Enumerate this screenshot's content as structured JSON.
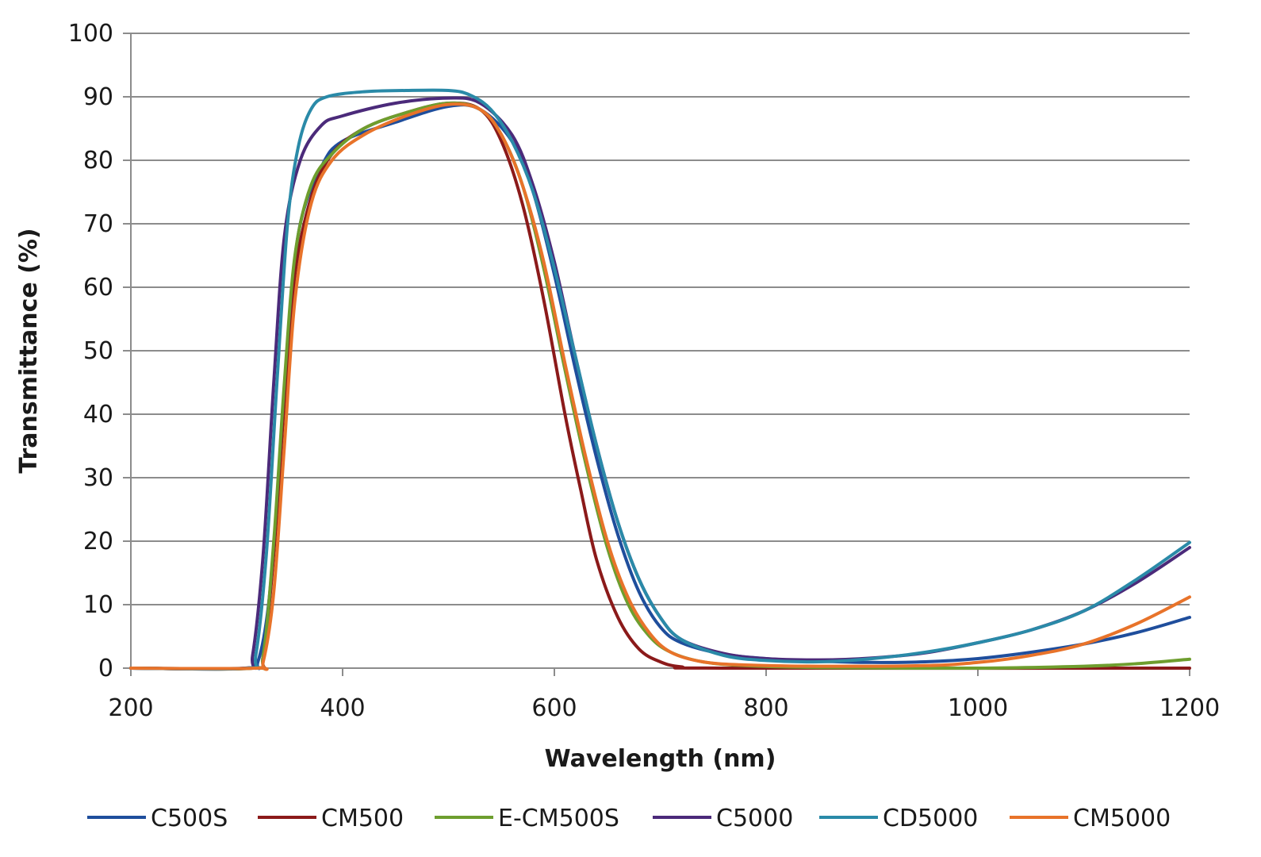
{
  "chart_data": {
    "type": "line",
    "title": "",
    "xlabel": "Wavelength (nm)",
    "ylabel": "Transmittance  (%)",
    "xlim": [
      200,
      1200
    ],
    "ylim": [
      0,
      100
    ],
    "xticks": [
      200,
      400,
      600,
      800,
      1000,
      1200
    ],
    "yticks": [
      0,
      10,
      20,
      30,
      40,
      50,
      60,
      70,
      80,
      90,
      100
    ],
    "grid": "horizontal",
    "legend_position": "bottom",
    "series": [
      {
        "name": "C500S",
        "color": "#1f4e9c",
        "points": [
          [
            200,
            0
          ],
          [
            310,
            0
          ],
          [
            320,
            1
          ],
          [
            330,
            10
          ],
          [
            340,
            30
          ],
          [
            350,
            55
          ],
          [
            360,
            70
          ],
          [
            380,
            79
          ],
          [
            400,
            83
          ],
          [
            450,
            86
          ],
          [
            500,
            88.5
          ],
          [
            530,
            88
          ],
          [
            560,
            83
          ],
          [
            580,
            75
          ],
          [
            600,
            62
          ],
          [
            620,
            47
          ],
          [
            640,
            33
          ],
          [
            660,
            21
          ],
          [
            680,
            12
          ],
          [
            700,
            6.5
          ],
          [
            720,
            4
          ],
          [
            760,
            2.2
          ],
          [
            800,
            1.5
          ],
          [
            850,
            1.1
          ],
          [
            900,
            0.9
          ],
          [
            950,
            1
          ],
          [
            1000,
            1.5
          ],
          [
            1050,
            2.5
          ],
          [
            1100,
            3.8
          ],
          [
            1150,
            5.6
          ],
          [
            1200,
            8
          ]
        ]
      },
      {
        "name": "CM500",
        "color": "#8b1a1a",
        "points": [
          [
            200,
            0
          ],
          [
            315,
            0
          ],
          [
            325,
            2
          ],
          [
            335,
            18
          ],
          [
            345,
            42
          ],
          [
            355,
            62
          ],
          [
            370,
            74
          ],
          [
            390,
            81
          ],
          [
            420,
            85
          ],
          [
            460,
            87.5
          ],
          [
            500,
            89
          ],
          [
            530,
            88
          ],
          [
            550,
            83
          ],
          [
            570,
            73
          ],
          [
            590,
            58
          ],
          [
            610,
            40
          ],
          [
            625,
            28
          ],
          [
            640,
            17
          ],
          [
            660,
            8
          ],
          [
            680,
            3
          ],
          [
            700,
            1
          ],
          [
            720,
            0.2
          ],
          [
            760,
            0
          ],
          [
            1200,
            0
          ]
        ]
      },
      {
        "name": "E-CM500S",
        "color": "#6e9e2e",
        "points": [
          [
            200,
            0
          ],
          [
            315,
            0
          ],
          [
            325,
            2
          ],
          [
            335,
            20
          ],
          [
            345,
            45
          ],
          [
            355,
            65
          ],
          [
            370,
            76
          ],
          [
            390,
            81
          ],
          [
            420,
            85
          ],
          [
            460,
            87.5
          ],
          [
            500,
            89
          ],
          [
            530,
            88
          ],
          [
            550,
            84
          ],
          [
            570,
            76
          ],
          [
            590,
            63
          ],
          [
            610,
            47
          ],
          [
            630,
            32
          ],
          [
            650,
            19
          ],
          [
            670,
            10
          ],
          [
            690,
            5
          ],
          [
            710,
            2.5
          ],
          [
            740,
            1
          ],
          [
            780,
            0.4
          ],
          [
            850,
            0.1
          ],
          [
            1000,
            0
          ],
          [
            1100,
            0.3
          ],
          [
            1150,
            0.7
          ],
          [
            1200,
            1.4
          ]
        ]
      },
      {
        "name": "C5000",
        "color": "#4b2a7a",
        "points": [
          [
            200,
            0
          ],
          [
            308,
            0
          ],
          [
            315,
            2
          ],
          [
            325,
            18
          ],
          [
            335,
            45
          ],
          [
            345,
            68
          ],
          [
            360,
            80
          ],
          [
            380,
            85.5
          ],
          [
            400,
            87
          ],
          [
            450,
            89
          ],
          [
            500,
            89.8
          ],
          [
            530,
            89
          ],
          [
            560,
            84
          ],
          [
            580,
            76
          ],
          [
            600,
            64
          ],
          [
            620,
            49
          ],
          [
            640,
            35
          ],
          [
            660,
            23
          ],
          [
            680,
            14
          ],
          [
            700,
            8
          ],
          [
            720,
            4.5
          ],
          [
            760,
            2.3
          ],
          [
            800,
            1.5
          ],
          [
            850,
            1.3
          ],
          [
            900,
            1.6
          ],
          [
            950,
            2.4
          ],
          [
            1000,
            4
          ],
          [
            1050,
            6
          ],
          [
            1100,
            9
          ],
          [
            1150,
            13.5
          ],
          [
            1200,
            19
          ]
        ]
      },
      {
        "name": "CD5000",
        "color": "#2a8aa8",
        "points": [
          [
            200,
            0
          ],
          [
            310,
            0
          ],
          [
            318,
            2
          ],
          [
            328,
            18
          ],
          [
            338,
            45
          ],
          [
            348,
            70
          ],
          [
            358,
            82
          ],
          [
            370,
            88
          ],
          [
            385,
            90
          ],
          [
            420,
            90.8
          ],
          [
            460,
            91
          ],
          [
            500,
            91
          ],
          [
            520,
            90.3
          ],
          [
            540,
            88
          ],
          [
            560,
            83
          ],
          [
            580,
            75
          ],
          [
            600,
            63
          ],
          [
            620,
            49
          ],
          [
            640,
            35
          ],
          [
            660,
            23
          ],
          [
            680,
            14
          ],
          [
            700,
            8
          ],
          [
            720,
            4.5
          ],
          [
            760,
            2
          ],
          [
            800,
            1.2
          ],
          [
            850,
            1
          ],
          [
            900,
            1.5
          ],
          [
            950,
            2.5
          ],
          [
            1000,
            4
          ],
          [
            1050,
            6
          ],
          [
            1100,
            9
          ],
          [
            1150,
            14
          ],
          [
            1200,
            19.8
          ]
        ]
      },
      {
        "name": "CM5000",
        "color": "#e8732a",
        "points": [
          [
            200,
            0
          ],
          [
            318,
            0
          ],
          [
            325,
            1
          ],
          [
            335,
            12
          ],
          [
            345,
            35
          ],
          [
            355,
            58
          ],
          [
            370,
            73
          ],
          [
            390,
            80
          ],
          [
            420,
            84
          ],
          [
            460,
            87
          ],
          [
            500,
            88.8
          ],
          [
            530,
            88
          ],
          [
            550,
            84
          ],
          [
            570,
            76
          ],
          [
            590,
            64
          ],
          [
            610,
            48
          ],
          [
            630,
            33
          ],
          [
            650,
            20
          ],
          [
            670,
            11
          ],
          [
            690,
            5.5
          ],
          [
            710,
            2.5
          ],
          [
            740,
            1
          ],
          [
            780,
            0.5
          ],
          [
            850,
            0.3
          ],
          [
            950,
            0.4
          ],
          [
            1000,
            0.9
          ],
          [
            1050,
            2
          ],
          [
            1100,
            3.8
          ],
          [
            1150,
            7
          ],
          [
            1200,
            11.2
          ]
        ]
      }
    ]
  }
}
